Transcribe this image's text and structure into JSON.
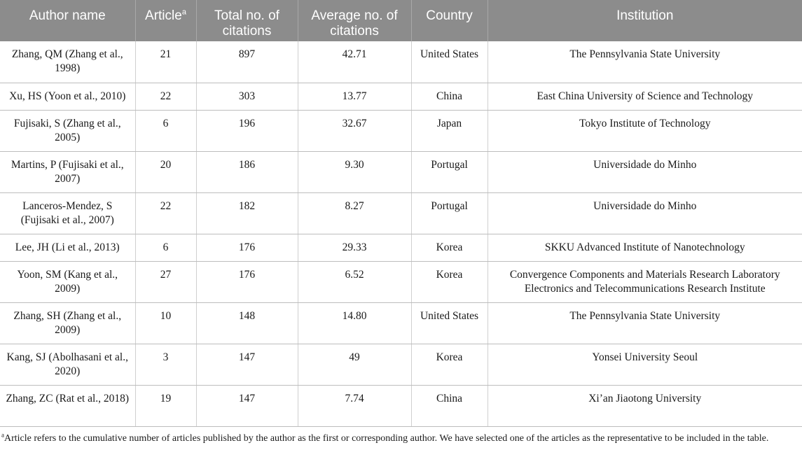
{
  "table": {
    "headers": {
      "author": "Author name",
      "article": "Article",
      "article_sup": "a",
      "total": "Total no. of citations",
      "average": "Average no. of citations",
      "country": "Country",
      "institution": "Institution"
    },
    "rows": [
      {
        "author": "Zhang, QM (Zhang et al., 1998)",
        "article": "21",
        "total": "897",
        "average": "42.71",
        "country": "United States",
        "institution": [
          "The Pennsylvania State University"
        ]
      },
      {
        "author": "Xu, HS (Yoon et al., 2010)",
        "article": "22",
        "total": "303",
        "average": "13.77",
        "country": "China",
        "institution": [
          "East China University of Science and Technology"
        ]
      },
      {
        "author": "Fujisaki, S (Zhang et al., 2005)",
        "article": "6",
        "total": "196",
        "average": "32.67",
        "country": "Japan",
        "institution": [
          "Tokyo Institute of Technology"
        ]
      },
      {
        "author": "Martins, P (Fujisaki et al., 2007)",
        "article": "20",
        "total": "186",
        "average": "9.30",
        "country": "Portugal",
        "institution": [
          "Universidade do Minho"
        ]
      },
      {
        "author": "Lanceros-Mendez, S (Fujisaki et al., 2007)",
        "article": "22",
        "total": "182",
        "average": "8.27",
        "country": "Portugal",
        "institution": [
          "Universidade do Minho"
        ]
      },
      {
        "author": "Lee, JH (Li et al., 2013)",
        "article": "6",
        "total": "176",
        "average": "29.33",
        "country": "Korea",
        "institution": [
          "SKKU Advanced Institute of Nanotechnology"
        ]
      },
      {
        "author": "Yoon, SM (Kang et al., 2009)",
        "article": "27",
        "total": "176",
        "average": "6.52",
        "country": "Korea",
        "institution": [
          "Convergence Components and Materials Research Laboratory",
          "Electronics and Telecommunications Research Institute"
        ]
      },
      {
        "author": "Zhang, SH (Zhang et al., 2009)",
        "article": "10",
        "total": "148",
        "average": "14.80",
        "country": "United States",
        "institution": [
          "The Pennsylvania State University"
        ]
      },
      {
        "author": "Kang, SJ (Abolhasani et al., 2020)",
        "article": "3",
        "total": "147",
        "average": "49",
        "country": "Korea",
        "institution": [
          "Yonsei University Seoul"
        ]
      },
      {
        "author": "Zhang, ZC (Rat et al., 2018)",
        "article": "19",
        "total": "147",
        "average": "7.74",
        "country": "China",
        "institution": [
          "Xi’an Jiaotong University"
        ]
      }
    ]
  },
  "footnote": {
    "marker": "a",
    "text": "Article refers to the cumulative number of articles published by the author as the first or corresponding author. We have selected one of the articles as the representative to be included in the table."
  }
}
